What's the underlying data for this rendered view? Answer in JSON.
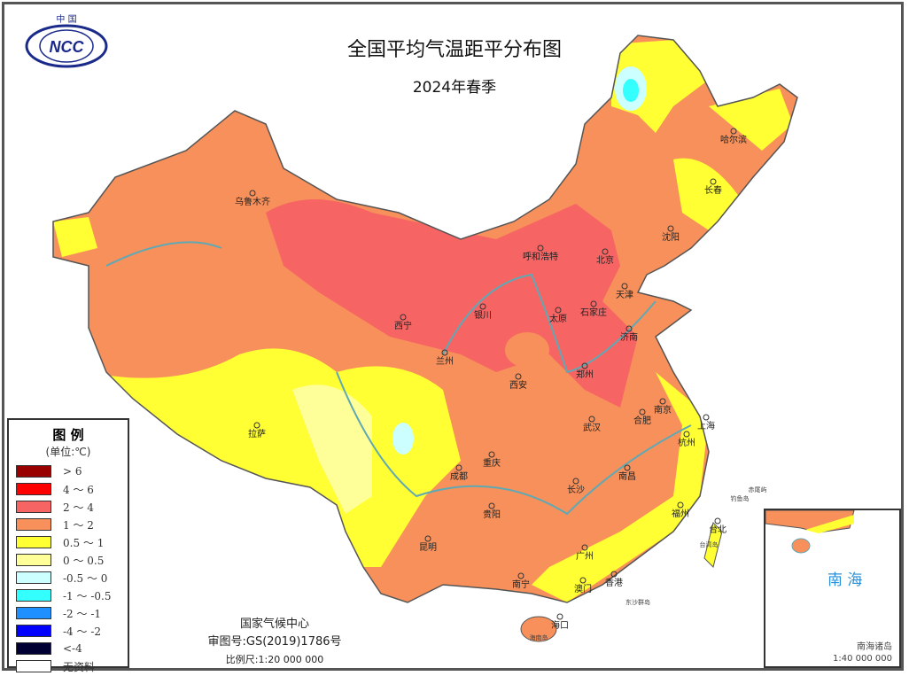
{
  "header": {
    "title": "全国平均气温距平分布图",
    "subtitle": "2024年春季",
    "logo_text": "中国 NCC"
  },
  "legend": {
    "title": "图 例",
    "unit": "(单位:℃)",
    "items": [
      {
        "label": "> 6",
        "color": "#990000"
      },
      {
        "label": "4 ～ 6",
        "color": "#ff0000"
      },
      {
        "label": "2 ～ 4",
        "color": "#f76464"
      },
      {
        "label": "1 ～ 2",
        "color": "#f7905a"
      },
      {
        "label": "0.5 ～ 1",
        "color": "#ffff33"
      },
      {
        "label": "0 ～ 0.5",
        "color": "#ffff99"
      },
      {
        "label": "-0.5 ～ 0",
        "color": "#ccffff"
      },
      {
        "label": "-1 ～ -0.5",
        "color": "#33ffff"
      },
      {
        "label": "-2 ～ -1",
        "color": "#1e90ff"
      },
      {
        "label": "-4 ～ -2",
        "color": "#0000ff"
      },
      {
        "label": "<-4",
        "color": "#000033"
      },
      {
        "label": "无资料",
        "color": "#ffffff"
      }
    ]
  },
  "cities": [
    "乌鲁木齐",
    "拉萨",
    "西宁",
    "兰州",
    "银川",
    "呼和浩特",
    "北京",
    "天津",
    "石家庄",
    "太原",
    "济南",
    "郑州",
    "西安",
    "成都",
    "重庆",
    "贵阳",
    "昆明",
    "南宁",
    "广州",
    "澳门",
    "香港",
    "海口",
    "长沙",
    "武汉",
    "南昌",
    "合肥",
    "南京",
    "上海",
    "杭州",
    "福州",
    "台北",
    "沈阳",
    "长春",
    "哈尔滨"
  ],
  "islands": [
    "钓鱼岛",
    "赤尾屿",
    "台湾岛",
    "东沙群岛",
    "海南岛"
  ],
  "credits": {
    "agency": "国家气候中心",
    "approval": "审图号:GS(2019)1786号",
    "scale": "比例尺:1:20 000 000"
  },
  "inset": {
    "sea_label": "南 海",
    "islands_label": "南海诸岛",
    "scale": "1:40 000 000"
  }
}
